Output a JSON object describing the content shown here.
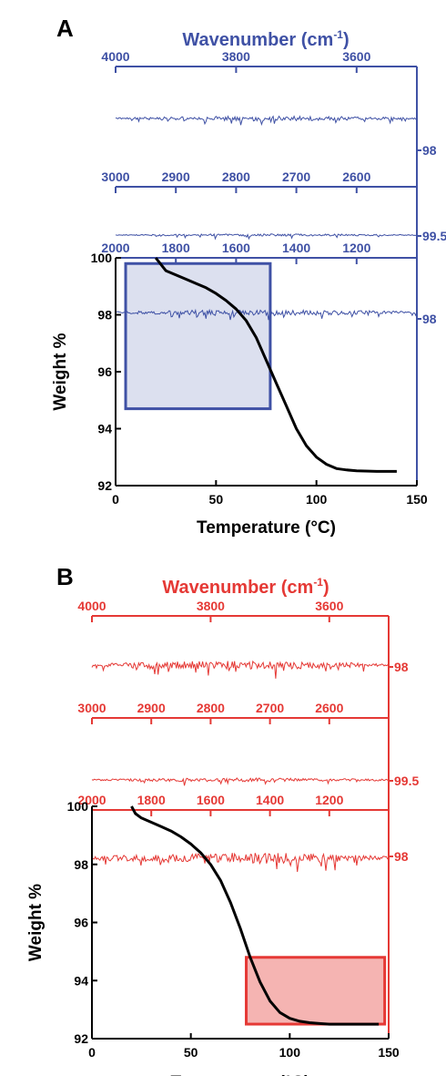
{
  "chart_data": [
    {
      "type": "line",
      "panel": "A",
      "accent_color": "#3f51a5",
      "highlight_color": "#3f51a5",
      "wavenumber_title": "Wavenumber (cm",
      "wavenumber_title_sup": "-1",
      "wavenumber_title_end": ")",
      "xlabel": "Temperature (°C)",
      "ylabel": "Weight %",
      "xlim": [
        0,
        150
      ],
      "ylim": [
        92,
        100
      ],
      "x_ticks": [
        "0",
        "50",
        "100",
        "150"
      ],
      "y_ticks": [
        "92",
        "94",
        "96",
        "98",
        "100"
      ],
      "ir_strips": [
        {
          "range": [
            4000,
            3500
          ],
          "ticks": [
            "4000",
            "3800",
            "3600"
          ],
          "right_label": "98"
        },
        {
          "range": [
            3000,
            2500
          ],
          "ticks": [
            "3000",
            "2900",
            "2800",
            "2700",
            "2600"
          ],
          "right_label": "99.5"
        },
        {
          "range": [
            2000,
            1000
          ],
          "ticks": [
            "2000",
            "1800",
            "1600",
            "1400",
            "1200"
          ],
          "right_label": "98"
        }
      ],
      "highlight_region": {
        "x": [
          5,
          77
        ],
        "y": [
          94.7,
          99.8
        ]
      },
      "tga_curve": {
        "x": [
          20,
          25,
          30,
          35,
          40,
          45,
          50,
          55,
          60,
          65,
          70,
          75,
          80,
          85,
          90,
          95,
          100,
          105,
          110,
          115,
          120,
          130,
          140
        ],
        "y": [
          100,
          99.55,
          99.4,
          99.25,
          99.1,
          98.95,
          98.75,
          98.5,
          98.2,
          97.8,
          97.2,
          96.4,
          95.6,
          94.8,
          94.0,
          93.4,
          93.0,
          92.75,
          92.6,
          92.55,
          92.52,
          92.5,
          92.5
        ]
      }
    },
    {
      "type": "line",
      "panel": "B",
      "accent_color": "#e53935",
      "highlight_color": "#e53935",
      "wavenumber_title": "Wavenumber (cm",
      "wavenumber_title_sup": "-1",
      "wavenumber_title_end": ")",
      "xlabel": "Temperature (°C)",
      "ylabel": "Weight %",
      "xlim": [
        0,
        150
      ],
      "ylim": [
        92,
        100
      ],
      "x_ticks": [
        "0",
        "50",
        "100",
        "150"
      ],
      "y_ticks": [
        "92",
        "94",
        "96",
        "98",
        "100"
      ],
      "ir_strips": [
        {
          "range": [
            4000,
            3500
          ],
          "ticks": [
            "4000",
            "3800",
            "3600"
          ],
          "right_label": "98"
        },
        {
          "range": [
            3000,
            2500
          ],
          "ticks": [
            "3000",
            "2900",
            "2800",
            "2700",
            "2600"
          ],
          "right_label": "99.5"
        },
        {
          "range": [
            2000,
            1000
          ],
          "ticks": [
            "2000",
            "1800",
            "1600",
            "1400",
            "1200"
          ],
          "right_label": "98"
        }
      ],
      "highlight_region": {
        "x": [
          78,
          148
        ],
        "y": [
          92.5,
          94.8
        ]
      },
      "tga_curve": {
        "x": [
          20,
          22,
          25,
          30,
          35,
          40,
          45,
          50,
          55,
          60,
          65,
          70,
          75,
          80,
          85,
          90,
          95,
          100,
          105,
          110,
          115,
          120,
          130,
          140,
          145
        ],
        "y": [
          100,
          99.75,
          99.6,
          99.45,
          99.3,
          99.15,
          98.95,
          98.7,
          98.4,
          98.0,
          97.45,
          96.7,
          95.8,
          94.8,
          93.95,
          93.3,
          92.9,
          92.7,
          92.6,
          92.55,
          92.52,
          92.5,
          92.5,
          92.5,
          92.5
        ]
      }
    }
  ],
  "panels": [
    "A",
    "B"
  ]
}
